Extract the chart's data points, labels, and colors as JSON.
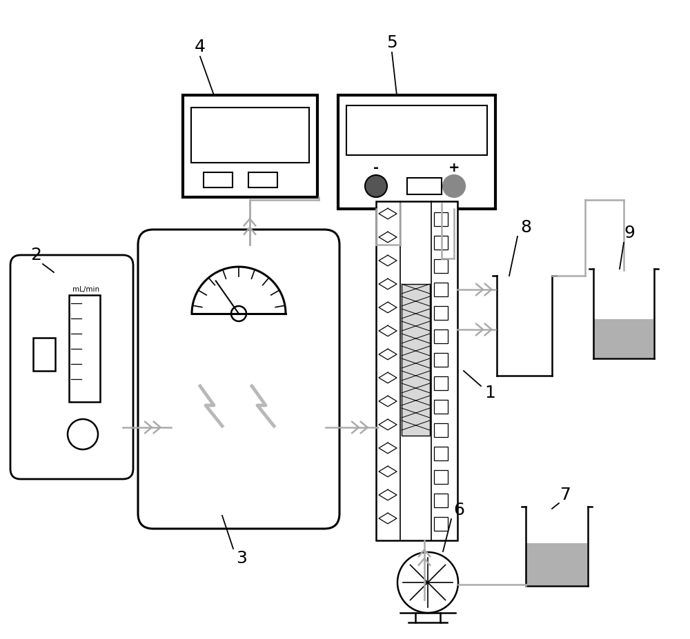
{
  "bg_color": "#ffffff",
  "lc": "#000000",
  "gray": "#aaaaaa",
  "dark_gray": "#555555",
  "lt_gray": "#b8b8b8",
  "figsize": [
    10.0,
    9.27
  ],
  "dpi": 100
}
